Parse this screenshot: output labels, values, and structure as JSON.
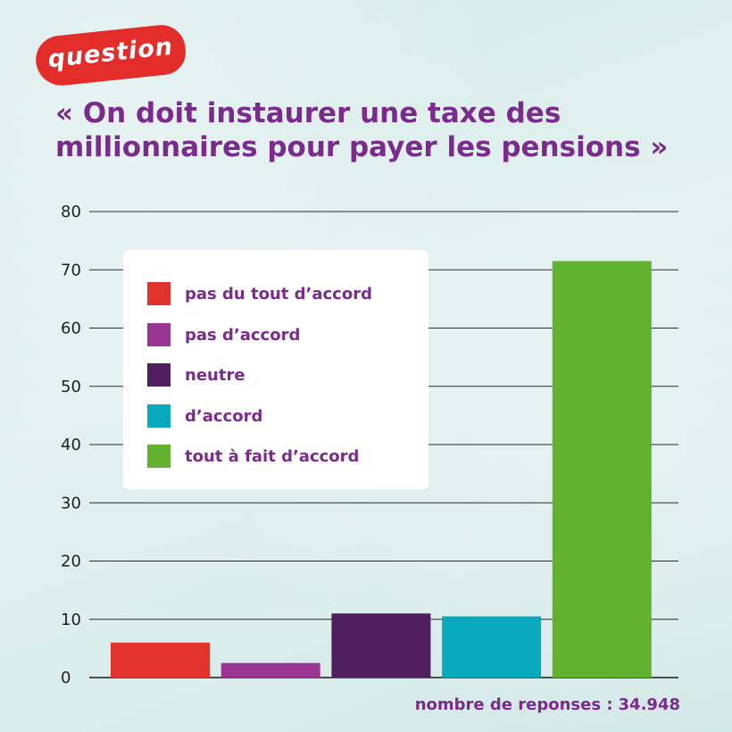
{
  "badge": {
    "label": "question"
  },
  "title": {
    "line1": "« On doit instaurer une taxe des",
    "line2": "millionnaires pour payer les pensions »"
  },
  "footnote": {
    "label": "nombre de reponses :",
    "value": "34.948"
  },
  "chart_data": {
    "type": "bar",
    "categories": [
      "pas du tout d’accord",
      "pas d’accord",
      "neutre",
      "d’accord",
      "tout à fait d’accord"
    ],
    "values": [
      6,
      2.5,
      11,
      10.5,
      71.5
    ],
    "colors": [
      "#e2322c",
      "#9a3593",
      "#4f1f5e",
      "#08a9bd",
      "#63b22f"
    ],
    "ylim": [
      0,
      80
    ],
    "yticks": [
      0,
      10,
      20,
      30,
      40,
      50,
      60,
      70,
      80
    ],
    "title": "",
    "xlabel": "",
    "ylabel": "",
    "grid": true,
    "legend": {
      "placement": "top-left",
      "entries": [
        "pas du tout d’accord",
        "pas d’accord",
        "neutre",
        "d’accord",
        "tout à fait d’accord"
      ]
    }
  }
}
